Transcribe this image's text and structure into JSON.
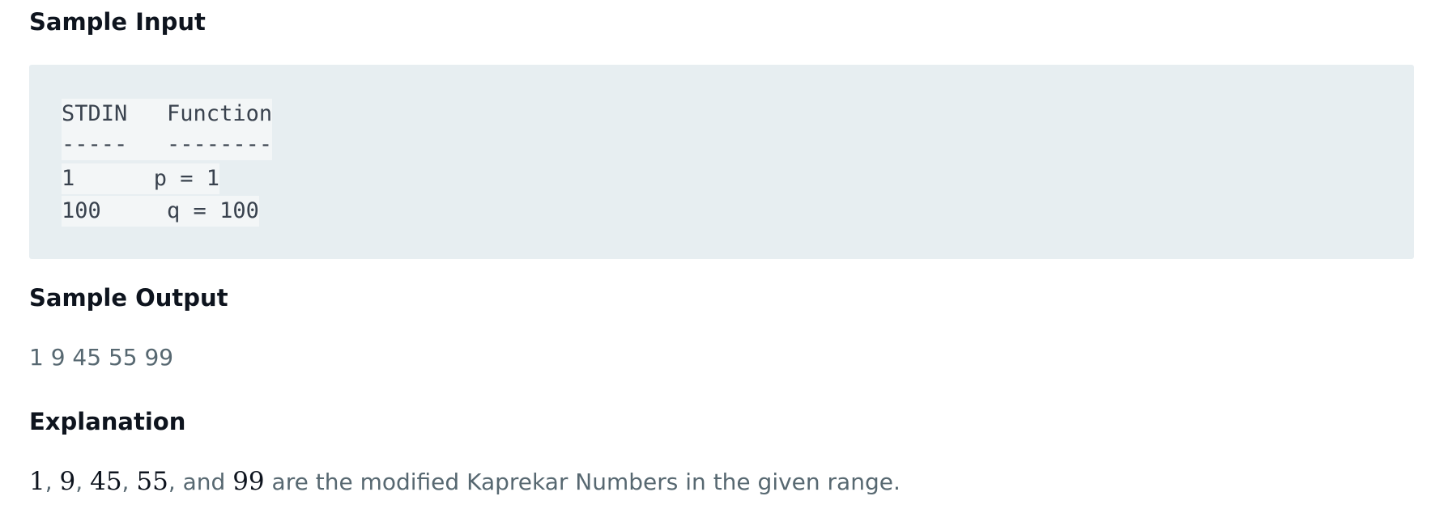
{
  "sample_input": {
    "heading": "Sample Input",
    "code_lines": [
      "STDIN   Function",
      "-----   --------",
      "1      p = 1",
      "100     q = 100"
    ]
  },
  "sample_output": {
    "heading": "Sample Output",
    "text": "1 9 45 55 99"
  },
  "explanation": {
    "heading": "Explanation",
    "numbers": [
      "1",
      "9",
      "45",
      "55",
      "99"
    ],
    "separators": [
      ", ",
      ", ",
      ", ",
      ", and "
    ],
    "suffix": " are the modified Kaprekar Numbers in the given range."
  },
  "colors": {
    "heading": "#0e141e",
    "body_text": "#576871",
    "code_background": "#e7eef1",
    "code_line_background": "#f3f6f7",
    "code_text": "#39424e"
  }
}
